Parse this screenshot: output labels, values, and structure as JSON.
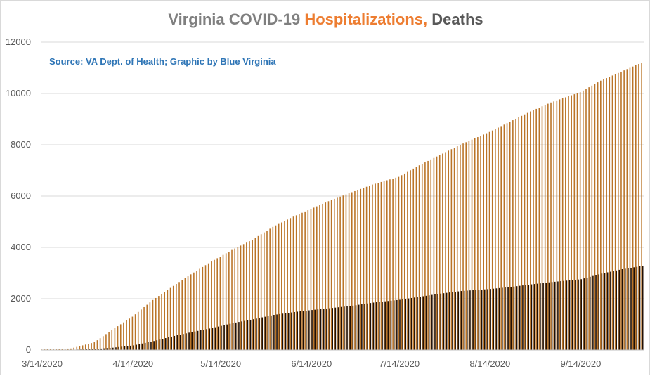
{
  "title": {
    "prefix": "Virginia COVID-19 ",
    "highlight": "Hospitalizations,",
    "suffix": " Deaths"
  },
  "subtitle": "Source: VA Dept. of Health; Graphic by Blue Virginia",
  "colors": {
    "hospitalizations": "#ba7427",
    "deaths": "#1f0f05",
    "grid": "#d9d9d9",
    "title_gray": "#7f7f7f",
    "title_orange": "#ed7d31",
    "subtitle_blue": "#2e75b6"
  },
  "chart_data": {
    "type": "bar",
    "title": "Virginia COVID-19 Hospitalizations, Deaths",
    "xlabel": "",
    "ylabel": "",
    "ylim": [
      0,
      12000
    ],
    "y_ticks": [
      0,
      2000,
      4000,
      6000,
      8000,
      10000,
      12000
    ],
    "x_start": "3/14/2020",
    "x_end": "10/05/2020",
    "x_ticks": [
      "3/14/2020",
      "4/14/2020",
      "5/14/2020",
      "6/14/2020",
      "7/14/2020",
      "8/14/2020",
      "9/14/2020"
    ],
    "grid": true,
    "legend": "none",
    "series": [
      {
        "key": "hospitalizations",
        "anchors": [
          [
            "3/14/2020",
            20
          ],
          [
            "3/24/2020",
            60
          ],
          [
            "4/1/2020",
            300
          ],
          [
            "4/7/2020",
            780
          ],
          [
            "4/14/2020",
            1300
          ],
          [
            "4/21/2020",
            1950
          ],
          [
            "4/28/2020",
            2500
          ],
          [
            "5/4/2020",
            2950
          ],
          [
            "5/11/2020",
            3450
          ],
          [
            "5/18/2020",
            3900
          ],
          [
            "5/25/2020",
            4300
          ],
          [
            "6/1/2020",
            4800
          ],
          [
            "6/8/2020",
            5200
          ],
          [
            "6/14/2020",
            5500
          ],
          [
            "6/21/2020",
            5850
          ],
          [
            "6/28/2020",
            6150
          ],
          [
            "7/5/2020",
            6450
          ],
          [
            "7/14/2020",
            6750
          ],
          [
            "7/21/2020",
            7200
          ],
          [
            "7/28/2020",
            7600
          ],
          [
            "8/4/2020",
            8000
          ],
          [
            "8/14/2020",
            8500
          ],
          [
            "8/21/2020",
            8900
          ],
          [
            "8/28/2020",
            9300
          ],
          [
            "9/4/2020",
            9650
          ],
          [
            "9/14/2020",
            10050
          ],
          [
            "9/21/2020",
            10500
          ],
          [
            "9/28/2020",
            10850
          ],
          [
            "10/5/2020",
            11200
          ]
        ]
      },
      {
        "key": "deaths",
        "anchors": [
          [
            "3/14/2020",
            0
          ],
          [
            "3/24/2020",
            10
          ],
          [
            "4/1/2020",
            40
          ],
          [
            "4/7/2020",
            90
          ],
          [
            "4/14/2020",
            180
          ],
          [
            "4/21/2020",
            350
          ],
          [
            "4/28/2020",
            550
          ],
          [
            "5/4/2020",
            700
          ],
          [
            "5/11/2020",
            860
          ],
          [
            "5/18/2020",
            1050
          ],
          [
            "5/25/2020",
            1200
          ],
          [
            "6/1/2020",
            1370
          ],
          [
            "6/8/2020",
            1480
          ],
          [
            "6/14/2020",
            1560
          ],
          [
            "6/21/2020",
            1640
          ],
          [
            "6/28/2020",
            1730
          ],
          [
            "7/5/2020",
            1850
          ],
          [
            "7/14/2020",
            1960
          ],
          [
            "7/21/2020",
            2080
          ],
          [
            "7/28/2020",
            2200
          ],
          [
            "8/4/2020",
            2300
          ],
          [
            "8/14/2020",
            2380
          ],
          [
            "8/21/2020",
            2460
          ],
          [
            "8/28/2020",
            2560
          ],
          [
            "9/4/2020",
            2650
          ],
          [
            "9/14/2020",
            2760
          ],
          [
            "9/21/2020",
            2980
          ],
          [
            "9/28/2020",
            3150
          ],
          [
            "10/5/2020",
            3280
          ]
        ]
      }
    ]
  }
}
